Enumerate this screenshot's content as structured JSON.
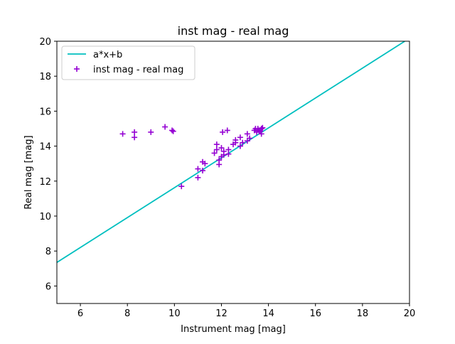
{
  "chart_data": {
    "type": "scatter",
    "title": "inst mag - real mag",
    "xlabel": "Instrument mag [mag]",
    "ylabel": "Real mag [mag]",
    "xlim": [
      5,
      20
    ],
    "ylim": [
      5,
      20
    ],
    "xticks": [
      "6",
      "8",
      "10",
      "12",
      "14",
      "16",
      "18",
      "20"
    ],
    "yticks": [
      "6",
      "8",
      "10",
      "12",
      "14",
      "16",
      "18",
      "20"
    ],
    "grid": false,
    "legend_position": "top-left",
    "fit_line": {
      "name": "a*x+b",
      "x": [
        5,
        19.8
      ],
      "y": [
        7.35,
        20.0
      ],
      "color": "#00bfbf"
    },
    "series": [
      {
        "name": "inst mag - real mag",
        "marker": "plus",
        "color": "#9400d3",
        "points": [
          [
            7.8,
            14.7
          ],
          [
            8.3,
            14.8
          ],
          [
            8.3,
            14.5
          ],
          [
            9.0,
            14.8
          ],
          [
            9.6,
            15.1
          ],
          [
            9.9,
            14.9
          ],
          [
            9.95,
            14.85
          ],
          [
            10.3,
            11.7
          ],
          [
            11.0,
            12.2
          ],
          [
            11.0,
            12.7
          ],
          [
            11.2,
            12.6
          ],
          [
            11.2,
            13.1
          ],
          [
            11.3,
            13.0
          ],
          [
            11.7,
            13.6
          ],
          [
            11.8,
            13.8
          ],
          [
            11.8,
            14.1
          ],
          [
            11.9,
            13.2
          ],
          [
            11.9,
            12.95
          ],
          [
            12.0,
            13.4
          ],
          [
            12.0,
            13.9
          ],
          [
            12.05,
            14.8
          ],
          [
            12.1,
            13.5
          ],
          [
            12.1,
            13.7
          ],
          [
            12.25,
            14.9
          ],
          [
            12.3,
            13.8
          ],
          [
            12.3,
            13.55
          ],
          [
            12.5,
            14.1
          ],
          [
            12.6,
            14.2
          ],
          [
            12.6,
            14.35
          ],
          [
            12.8,
            14.0
          ],
          [
            12.8,
            14.5
          ],
          [
            12.9,
            14.2
          ],
          [
            13.1,
            14.7
          ],
          [
            13.1,
            14.3
          ],
          [
            13.2,
            14.45
          ],
          [
            13.4,
            14.9
          ],
          [
            13.45,
            15.0
          ],
          [
            13.5,
            14.8
          ],
          [
            13.55,
            15.0
          ],
          [
            13.6,
            14.9
          ],
          [
            13.65,
            14.85
          ],
          [
            13.7,
            15.0
          ],
          [
            13.7,
            14.7
          ],
          [
            13.75,
            15.05
          ]
        ]
      }
    ]
  }
}
